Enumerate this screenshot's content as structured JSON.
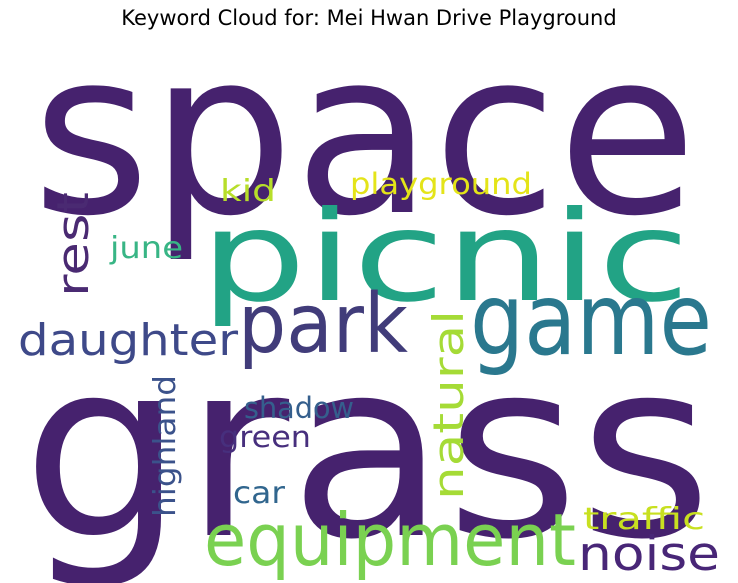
{
  "title": "Keyword Cloud for: Mei Hwan Drive Playground",
  "words": {
    "space": {
      "text": "space",
      "color": "#46226e"
    },
    "grass": {
      "text": "grass",
      "color": "#46226e"
    },
    "picnic": {
      "text": "picnic",
      "color": "#22a385"
    },
    "game": {
      "text": "game",
      "color": "#2a788e"
    },
    "park": {
      "text": "park",
      "color": "#413c7a"
    },
    "equipment": {
      "text": "equipment",
      "color": "#7ad151"
    },
    "noise": {
      "text": "noise",
      "color": "#482677"
    },
    "daughter": {
      "text": "daughter",
      "color": "#3e4989"
    },
    "natural": {
      "text": "natural",
      "color": "#a5db36"
    },
    "rest": {
      "text": "rest",
      "color": "#4a2a72"
    },
    "playground": {
      "text": "playground",
      "color": "#e4e419"
    },
    "kid": {
      "text": "kid",
      "color": "#b7de2a"
    },
    "june": {
      "text": "june",
      "color": "#38b585"
    },
    "traffic": {
      "text": "traffic",
      "color": "#c8e020"
    },
    "shadow": {
      "text": "shadow",
      "color": "#355f8d"
    },
    "highland": {
      "text": "highland",
      "color": "#3b528b"
    },
    "green": {
      "text": "green",
      "color": "#472f7d"
    },
    "car": {
      "text": "car",
      "color": "#31668e"
    }
  }
}
